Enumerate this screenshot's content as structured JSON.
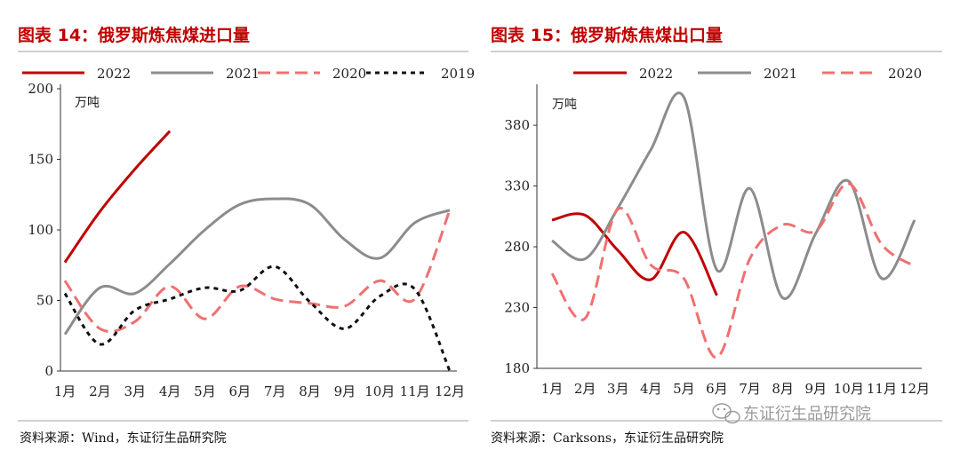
{
  "colors": {
    "title": "#c00000",
    "series_2022": "#c00000",
    "series_2021": "#8c8c8c",
    "series_2020": "#f07070",
    "series_2019": "#111111",
    "rule": "#a0a0a0"
  },
  "watermark": {
    "icon": "wechat-icon",
    "text": "东证衍生品研究院"
  },
  "chart_data": [
    {
      "id": "left",
      "type": "line",
      "title": "图表 14：俄罗斯炼焦煤进口量",
      "unit": "万吨",
      "source": "资料来源：Wind，东证衍生品研究院",
      "categories": [
        "1月",
        "2月",
        "3月",
        "4月",
        "5月",
        "6月",
        "7月",
        "8月",
        "9月",
        "10月",
        "11月",
        "12月"
      ],
      "ylim": [
        0,
        200
      ],
      "yticks": [
        0,
        50,
        100,
        150,
        200
      ],
      "grid": false,
      "legend": "top",
      "series": [
        {
          "name": "2022",
          "key": "series_2022",
          "dash": "",
          "values": [
            77,
            113,
            143,
            170,
            null,
            null,
            null,
            null,
            null,
            null,
            null,
            null
          ]
        },
        {
          "name": "2021",
          "key": "series_2021",
          "dash": "",
          "values": [
            26,
            59,
            55,
            76,
            100,
            118,
            122,
            118,
            93,
            80,
            105,
            114
          ]
        },
        {
          "name": "2020",
          "key": "series_2020",
          "dash": "14 7",
          "values": [
            64,
            30,
            35,
            60,
            37,
            60,
            51,
            48,
            46,
            64,
            51,
            114
          ]
        },
        {
          "name": "2019",
          "key": "series_2019",
          "dash": "5 5",
          "values": [
            55,
            19,
            43,
            51,
            59,
            57,
            74,
            49,
            30,
            53,
            58,
            0
          ]
        }
      ]
    },
    {
      "id": "right",
      "type": "line",
      "title": "图表 15：俄罗斯炼焦煤出口量",
      "unit": "万吨",
      "source": "资料来源：Carksons，东证衍生品研究院",
      "categories": [
        "1月",
        "2月",
        "3月",
        "4月",
        "5月",
        "6月",
        "7月",
        "8月",
        "9月",
        "10月",
        "11月",
        "12月"
      ],
      "ylim": [
        180,
        410
      ],
      "yticks": [
        180,
        230,
        280,
        330,
        380
      ],
      "grid": false,
      "legend": "top",
      "series": [
        {
          "name": "2022",
          "key": "series_2022",
          "dash": "",
          "values": [
            302,
            306,
            277,
            253,
            292,
            240,
            null,
            null,
            null,
            null,
            null,
            null
          ]
        },
        {
          "name": "2021",
          "key": "series_2021",
          "dash": "",
          "values": [
            285,
            270,
            312,
            360,
            403,
            261,
            328,
            238,
            291,
            334,
            254,
            302
          ]
        },
        {
          "name": "2020",
          "key": "series_2020",
          "dash": "14 7",
          "values": [
            258,
            221,
            311,
            265,
            254,
            189,
            270,
            298,
            293,
            332,
            282,
            264
          ]
        }
      ]
    }
  ]
}
